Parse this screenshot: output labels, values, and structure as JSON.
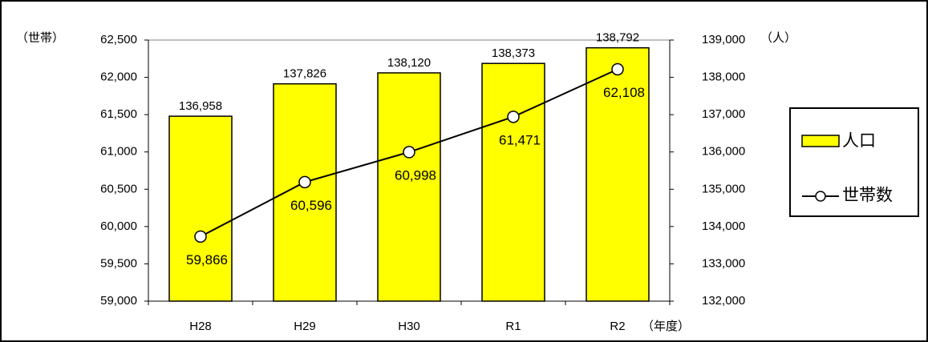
{
  "chart_data": {
    "type": "bar_line",
    "categories": [
      "H28",
      "H29",
      "H30",
      "R1",
      "R2"
    ],
    "y_label": "（世帯）",
    "y2_label": "（人）",
    "x_label": "（年度）",
    "ylim": [
      59000,
      62500
    ],
    "yticks": [
      {
        "value": 59000,
        "label": "59,000"
      },
      {
        "value": 59500,
        "label": "59,500"
      },
      {
        "value": 60000,
        "label": "60,000"
      },
      {
        "value": 60500,
        "label": "60,500"
      },
      {
        "value": 61000,
        "label": "61,000"
      },
      {
        "value": 61500,
        "label": "61,500"
      },
      {
        "value": 62000,
        "label": "62,000"
      },
      {
        "value": 62500,
        "label": "62,500"
      }
    ],
    "y2lim": [
      132000,
      139000
    ],
    "y2ticks": [
      {
        "value": 132000,
        "label": "132,000"
      },
      {
        "value": 133000,
        "label": "133,000"
      },
      {
        "value": 134000,
        "label": "134,000"
      },
      {
        "value": 135000,
        "label": "135,000"
      },
      {
        "value": 136000,
        "label": "136,000"
      },
      {
        "value": 137000,
        "label": "137,000"
      },
      {
        "value": 138000,
        "label": "138,000"
      },
      {
        "value": 139000,
        "label": "139,000"
      }
    ],
    "series": [
      {
        "name": "人口",
        "type": "bar",
        "axis": "y2",
        "color": "#ffff00",
        "values": [
          136958,
          137826,
          138120,
          138373,
          138792
        ],
        "value_labels": [
          "136,958",
          "137,826",
          "138,120",
          "138,373",
          "138,792"
        ]
      },
      {
        "name": "世帯数",
        "type": "line",
        "color": "#000000",
        "values": [
          59866,
          60596,
          60998,
          61471,
          62108
        ],
        "value_labels": [
          "59,866",
          "60,596",
          "60,998",
          "61,471",
          "62,108"
        ]
      }
    ]
  }
}
